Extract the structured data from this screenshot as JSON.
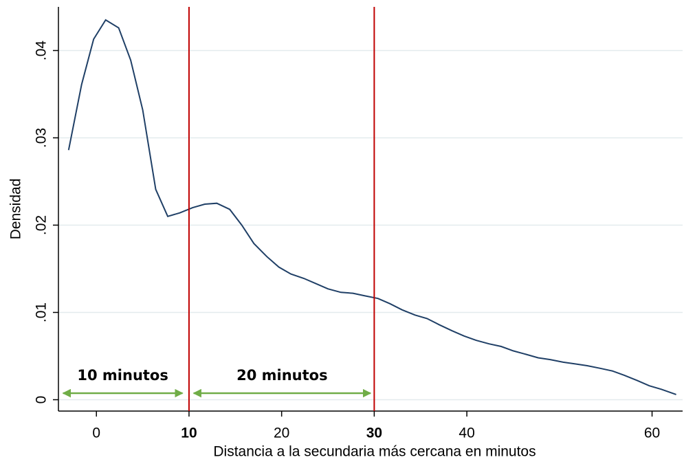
{
  "chart_data": {
    "type": "line",
    "xlabel": "Distancia a la secundaria más cercana en minutos",
    "ylabel": "Densidad",
    "x": [
      -3.0,
      -1.6,
      -0.3,
      1.0,
      2.4,
      3.7,
      5.0,
      6.4,
      7.7,
      9.0,
      10.4,
      11.7,
      13.0,
      14.4,
      15.7,
      17.0,
      18.4,
      19.7,
      21.0,
      22.4,
      23.7,
      25.0,
      26.4,
      27.7,
      29.0,
      30.4,
      31.7,
      33.0,
      34.4,
      35.7,
      37.0,
      38.4,
      39.7,
      41.0,
      42.4,
      43.7,
      45.0,
      46.4,
      47.7,
      49.0,
      50.4,
      51.7,
      53.0,
      54.4,
      55.7,
      57.0,
      58.4,
      59.7,
      61.0,
      62.6
    ],
    "values": [
      0.0286,
      0.0361,
      0.0413,
      0.0435,
      0.0426,
      0.0389,
      0.0332,
      0.0241,
      0.021,
      0.0214,
      0.022,
      0.0224,
      0.0225,
      0.0218,
      0.02,
      0.0179,
      0.0164,
      0.0152,
      0.0144,
      0.0139,
      0.0133,
      0.0127,
      0.0123,
      0.0122,
      0.0119,
      0.0116,
      0.011,
      0.0103,
      0.0097,
      0.0093,
      0.0086,
      0.0079,
      0.0073,
      0.0068,
      0.0064,
      0.0061,
      0.0056,
      0.0052,
      0.0048,
      0.0046,
      0.0043,
      0.0041,
      0.0039,
      0.0036,
      0.0033,
      0.0028,
      0.0022,
      0.0016,
      0.0012,
      0.0006
    ],
    "color": "#1f3f66",
    "xlim": [
      -4.1,
      63.3
    ],
    "ylim": [
      -0.0013,
      0.045
    ],
    "xticks": [
      0,
      10,
      20,
      30,
      40,
      60
    ],
    "yticks": [
      0,
      {
        "value": 0.01,
        "label": ".01"
      },
      {
        "value": 0.02,
        "label": ".02"
      },
      {
        "value": 0.03,
        "label": ".03"
      },
      {
        "value": 0.04,
        "label": ".04"
      }
    ],
    "grid": true,
    "vlines": [
      10,
      30
    ],
    "vline_color": "#c00000",
    "annotations": [
      {
        "text": "10 minutos",
        "from": -3.6,
        "to": 9.3
      },
      {
        "text": "20 minutos",
        "from": 10.5,
        "to": 29.6
      }
    ],
    "annotation_color": "#70ad47"
  }
}
